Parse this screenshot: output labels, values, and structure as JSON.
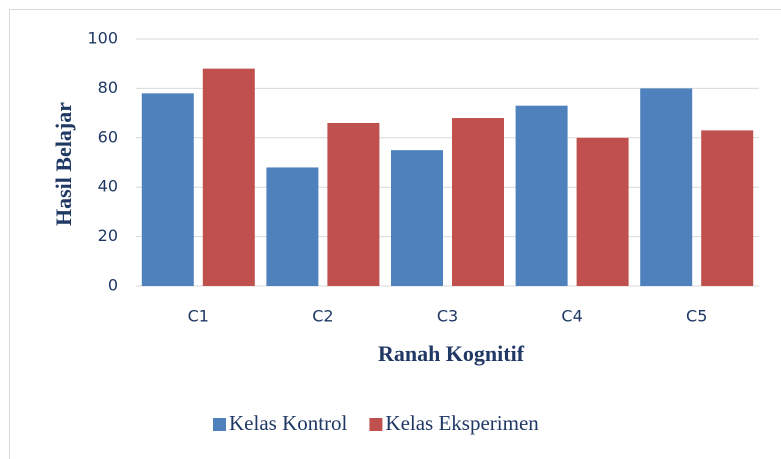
{
  "chart_data": {
    "type": "bar",
    "categories": [
      "C1",
      "C2",
      "C3",
      "C4",
      "C5"
    ],
    "series": [
      {
        "name": "Kelas Kontrol",
        "color": "#4f81bd",
        "values": [
          78,
          48,
          55,
          73,
          80
        ]
      },
      {
        "name": "Kelas Eksperimen",
        "color": "#c0504d",
        "values": [
          88,
          66,
          68,
          60,
          63
        ]
      }
    ],
    "xlabel": "Ranah Kognitif",
    "ylabel": "Hasil Belajar",
    "ylim": [
      0,
      100
    ],
    "yticks": [
      0,
      20,
      40,
      60,
      80,
      100
    ],
    "grid": true,
    "legend": "bottom"
  }
}
